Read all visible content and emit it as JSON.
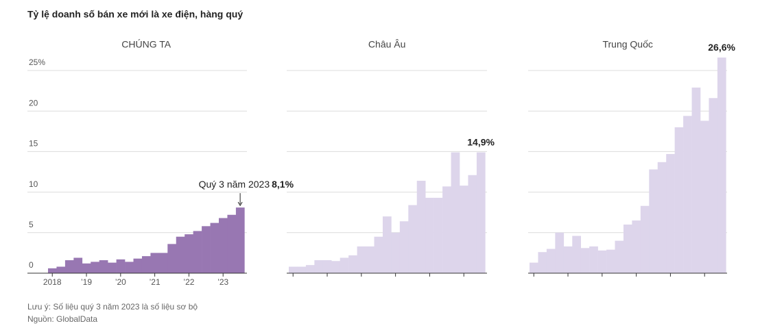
{
  "title": "Tỷ lệ doanh số bán xe mới là xe điện, hàng quý",
  "note": "Lưu ý: Số liệu quý 3 năm 2023 là số liệu sơ bộ",
  "source": "Nguồn: GlobalData",
  "chart_data": [
    {
      "type": "bar",
      "subtitle": "CHÚNG TA",
      "color": "#9877b2",
      "categories": [
        "2018",
        null,
        null,
        null,
        "’19",
        null,
        null,
        null,
        "’20",
        null,
        null,
        null,
        "’21",
        null,
        null,
        null,
        "’22",
        null,
        null,
        null,
        "’23",
        null,
        null
      ],
      "values": [
        0.6,
        0.8,
        1.6,
        1.9,
        1.2,
        1.4,
        1.6,
        1.3,
        1.7,
        1.4,
        1.8,
        2.1,
        2.5,
        2.5,
        3.6,
        4.5,
        4.8,
        5.2,
        5.8,
        6.2,
        6.8,
        7.2,
        8.1
      ],
      "value_labels": [
        null,
        null,
        null,
        null,
        null,
        null,
        null,
        null,
        null,
        null,
        null,
        null,
        null,
        null,
        null,
        null,
        null,
        null,
        null,
        null,
        null,
        null,
        "8,1%"
      ],
      "annotation": "Quý 3 năm 2023",
      "ylim": [
        0,
        25
      ],
      "yticks": [
        0,
        5,
        10,
        15,
        20,
        {
          "value": 25,
          "label": "25%"
        }
      ],
      "grid": true
    },
    {
      "type": "bar",
      "subtitle": "Châu Âu",
      "color": "#ddd5eb",
      "values": [
        0.8,
        0.8,
        1.0,
        1.6,
        1.6,
        1.5,
        1.9,
        2.2,
        3.3,
        3.3,
        4.5,
        7.0,
        5.0,
        6.4,
        8.4,
        11.4,
        9.3,
        9.3,
        10.7,
        14.9,
        10.8,
        12.1,
        14.9
      ],
      "value_labels": [
        null,
        null,
        null,
        null,
        null,
        null,
        null,
        null,
        null,
        null,
        null,
        null,
        null,
        null,
        null,
        null,
        null,
        null,
        null,
        null,
        null,
        null,
        "14,9%"
      ],
      "ylim": [
        0,
        25
      ],
      "yticks": [
        0,
        5,
        10,
        15,
        20,
        25
      ],
      "grid": true
    },
    {
      "type": "bar",
      "subtitle": "Trung Quốc",
      "color": "#ddd5eb",
      "values": [
        1.3,
        2.6,
        3.0,
        5.0,
        3.3,
        4.6,
        3.1,
        3.3,
        2.8,
        2.9,
        4.0,
        6.0,
        6.5,
        8.3,
        12.8,
        13.7,
        14.7,
        18.0,
        19.4,
        22.9,
        18.8,
        21.6,
        26.6
      ],
      "value_labels": [
        null,
        null,
        null,
        null,
        null,
        null,
        null,
        null,
        null,
        null,
        null,
        null,
        null,
        null,
        null,
        null,
        null,
        null,
        null,
        null,
        null,
        null,
        "26,6%"
      ],
      "ylim": [
        0,
        25
      ],
      "yticks": [
        0,
        5,
        10,
        15,
        20,
        25
      ],
      "grid": true
    }
  ]
}
